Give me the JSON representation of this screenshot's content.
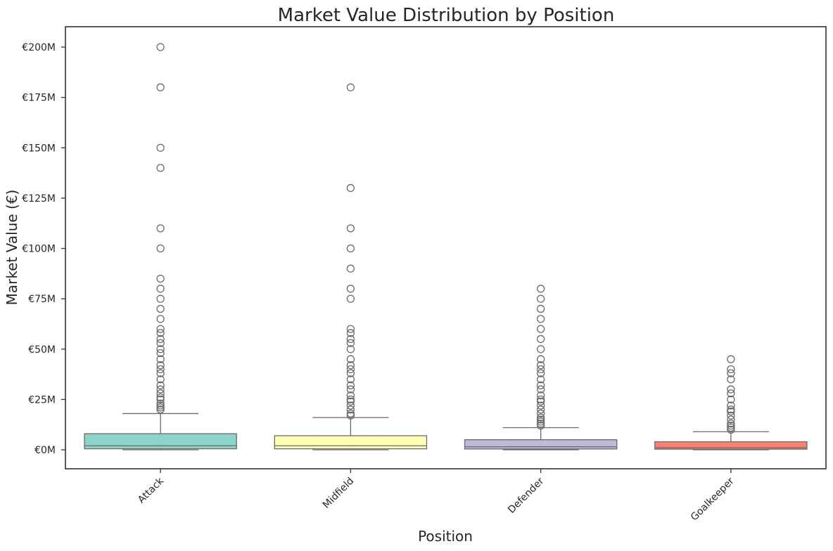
{
  "chart_data": {
    "type": "boxplot",
    "title": "Market Value Distribution by Position",
    "xlabel": "Position",
    "ylabel": "Market Value (€)",
    "ylim": [
      -9000000,
      210000000
    ],
    "yticks": [
      0,
      25000000,
      50000000,
      75000000,
      100000000,
      125000000,
      150000000,
      175000000,
      200000000
    ],
    "ytick_labels": [
      "€0M",
      "€25M",
      "€50M",
      "€75M",
      "€100M",
      "€125M",
      "€150M",
      "€175M",
      "€200M"
    ],
    "grid": false,
    "categories": [
      "Attack",
      "Midfield",
      "Defender",
      "Goalkeeper"
    ],
    "series": [
      {
        "category": "Attack",
        "color": "#8dd3c7",
        "whisker_low": 0,
        "q1": 500000,
        "median": 2000000,
        "q3": 8000000,
        "whisker_high": 18000000,
        "outliers": [
          20000000,
          21000000,
          22000000,
          23000000,
          25000000,
          26000000,
          28000000,
          30000000,
          32000000,
          35000000,
          38000000,
          40000000,
          42000000,
          45000000,
          48000000,
          50000000,
          53000000,
          55000000,
          58000000,
          60000000,
          65000000,
          70000000,
          75000000,
          80000000,
          85000000,
          100000000,
          110000000,
          140000000,
          150000000,
          180000000,
          200000000
        ]
      },
      {
        "category": "Midfield",
        "color": "#ffffb3",
        "whisker_low": 0,
        "q1": 500000,
        "median": 2000000,
        "q3": 7000000,
        "whisker_high": 16000000,
        "outliers": [
          17000000,
          18000000,
          20000000,
          22000000,
          24000000,
          25000000,
          27000000,
          30000000,
          32000000,
          35000000,
          38000000,
          40000000,
          42000000,
          45000000,
          50000000,
          53000000,
          55000000,
          58000000,
          60000000,
          75000000,
          80000000,
          90000000,
          100000000,
          110000000,
          130000000,
          180000000
        ]
      },
      {
        "category": "Defender",
        "color": "#bebada",
        "whisker_low": 0,
        "q1": 400000,
        "median": 1500000,
        "q3": 5000000,
        "whisker_high": 11000000,
        "outliers": [
          12000000,
          13000000,
          14000000,
          15000000,
          16000000,
          18000000,
          20000000,
          22000000,
          24000000,
          25000000,
          27000000,
          30000000,
          32000000,
          35000000,
          38000000,
          40000000,
          42000000,
          45000000,
          50000000,
          55000000,
          60000000,
          65000000,
          70000000,
          75000000,
          80000000
        ]
      },
      {
        "category": "Goalkeeper",
        "color": "#fb8072",
        "whisker_low": 0,
        "q1": 300000,
        "median": 1000000,
        "q3": 4000000,
        "whisker_high": 9000000,
        "outliers": [
          10000000,
          11000000,
          12000000,
          13000000,
          15000000,
          17000000,
          19000000,
          20000000,
          22000000,
          25000000,
          28000000,
          30000000,
          35000000,
          38000000,
          40000000,
          45000000
        ]
      }
    ]
  }
}
